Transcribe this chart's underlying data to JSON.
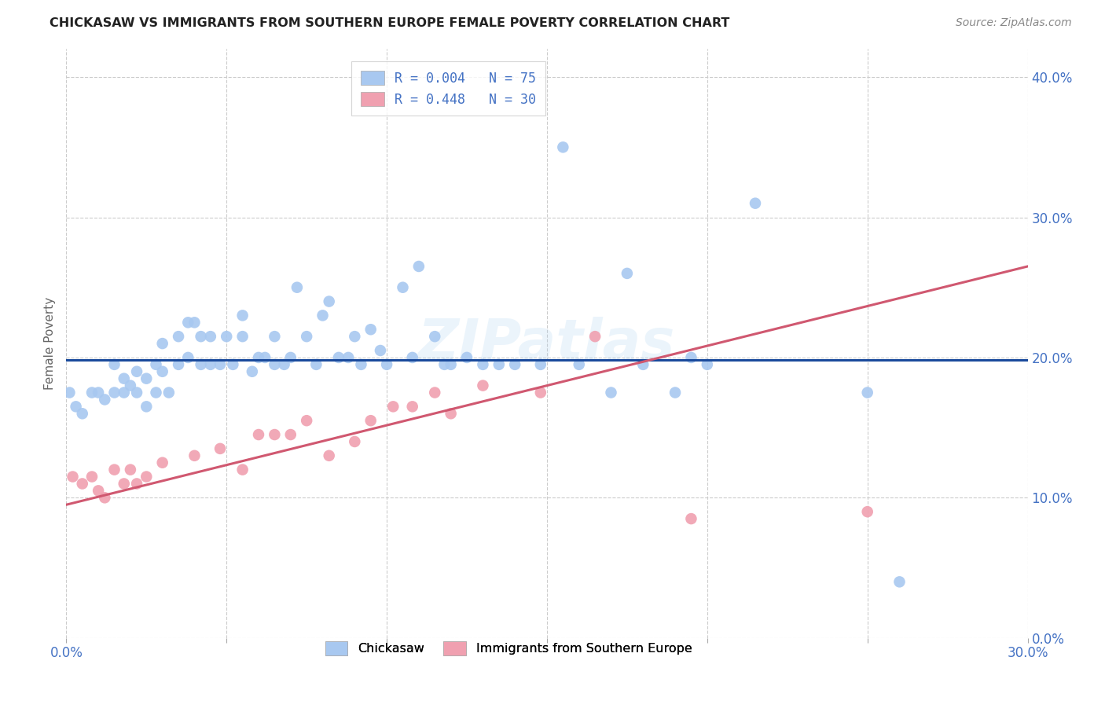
{
  "title": "CHICKASAW VS IMMIGRANTS FROM SOUTHERN EUROPE FEMALE POVERTY CORRELATION CHART",
  "source": "Source: ZipAtlas.com",
  "xmin": 0.0,
  "xmax": 0.3,
  "ymin": 0.0,
  "ymax": 0.42,
  "legend_label1": "R = 0.004   N = 75",
  "legend_label2": "R = 0.448   N = 30",
  "legend_label_bottom1": "Chickasaw",
  "legend_label_bottom2": "Immigrants from Southern Europe",
  "color_blue": "#A8C8F0",
  "color_pink": "#F0A0B0",
  "color_blue_line": "#1A4A9C",
  "color_pink_line": "#D05870",
  "watermark": "ZIPatlas",
  "R1": 0.004,
  "N1": 75,
  "R2": 0.448,
  "N2": 30,
  "blue_scatter_x": [
    0.001,
    0.003,
    0.005,
    0.008,
    0.01,
    0.012,
    0.015,
    0.015,
    0.018,
    0.018,
    0.02,
    0.022,
    0.022,
    0.025,
    0.025,
    0.028,
    0.028,
    0.03,
    0.03,
    0.032,
    0.035,
    0.035,
    0.038,
    0.038,
    0.04,
    0.042,
    0.042,
    0.045,
    0.045,
    0.048,
    0.05,
    0.052,
    0.055,
    0.055,
    0.058,
    0.06,
    0.062,
    0.065,
    0.065,
    0.068,
    0.07,
    0.072,
    0.075,
    0.078,
    0.08,
    0.082,
    0.085,
    0.088,
    0.09,
    0.092,
    0.095,
    0.098,
    0.1,
    0.105,
    0.108,
    0.11,
    0.115,
    0.118,
    0.12,
    0.125,
    0.13,
    0.135,
    0.14,
    0.148,
    0.155,
    0.16,
    0.17,
    0.175,
    0.18,
    0.19,
    0.195,
    0.2,
    0.215,
    0.25,
    0.26
  ],
  "blue_scatter_y": [
    0.175,
    0.165,
    0.16,
    0.175,
    0.175,
    0.17,
    0.175,
    0.195,
    0.175,
    0.185,
    0.18,
    0.175,
    0.19,
    0.165,
    0.185,
    0.175,
    0.195,
    0.19,
    0.21,
    0.175,
    0.195,
    0.215,
    0.2,
    0.225,
    0.225,
    0.195,
    0.215,
    0.195,
    0.215,
    0.195,
    0.215,
    0.195,
    0.215,
    0.23,
    0.19,
    0.2,
    0.2,
    0.195,
    0.215,
    0.195,
    0.2,
    0.25,
    0.215,
    0.195,
    0.23,
    0.24,
    0.2,
    0.2,
    0.215,
    0.195,
    0.22,
    0.205,
    0.195,
    0.25,
    0.2,
    0.265,
    0.215,
    0.195,
    0.195,
    0.2,
    0.195,
    0.195,
    0.195,
    0.195,
    0.35,
    0.195,
    0.175,
    0.26,
    0.195,
    0.175,
    0.2,
    0.195,
    0.31,
    0.175,
    0.04
  ],
  "pink_scatter_x": [
    0.002,
    0.005,
    0.008,
    0.01,
    0.012,
    0.015,
    0.018,
    0.02,
    0.022,
    0.025,
    0.03,
    0.04,
    0.048,
    0.055,
    0.06,
    0.065,
    0.07,
    0.075,
    0.082,
    0.09,
    0.095,
    0.102,
    0.108,
    0.115,
    0.12,
    0.13,
    0.148,
    0.165,
    0.195,
    0.25
  ],
  "pink_scatter_y": [
    0.115,
    0.11,
    0.115,
    0.105,
    0.1,
    0.12,
    0.11,
    0.12,
    0.11,
    0.115,
    0.125,
    0.13,
    0.135,
    0.12,
    0.145,
    0.145,
    0.145,
    0.155,
    0.13,
    0.14,
    0.155,
    0.165,
    0.165,
    0.175,
    0.16,
    0.18,
    0.175,
    0.215,
    0.085,
    0.09
  ],
  "blue_line_y_at_x0": 0.198,
  "blue_line_y_at_x30": 0.198,
  "pink_line_y_at_x0": 0.095,
  "pink_line_y_at_x30": 0.265
}
